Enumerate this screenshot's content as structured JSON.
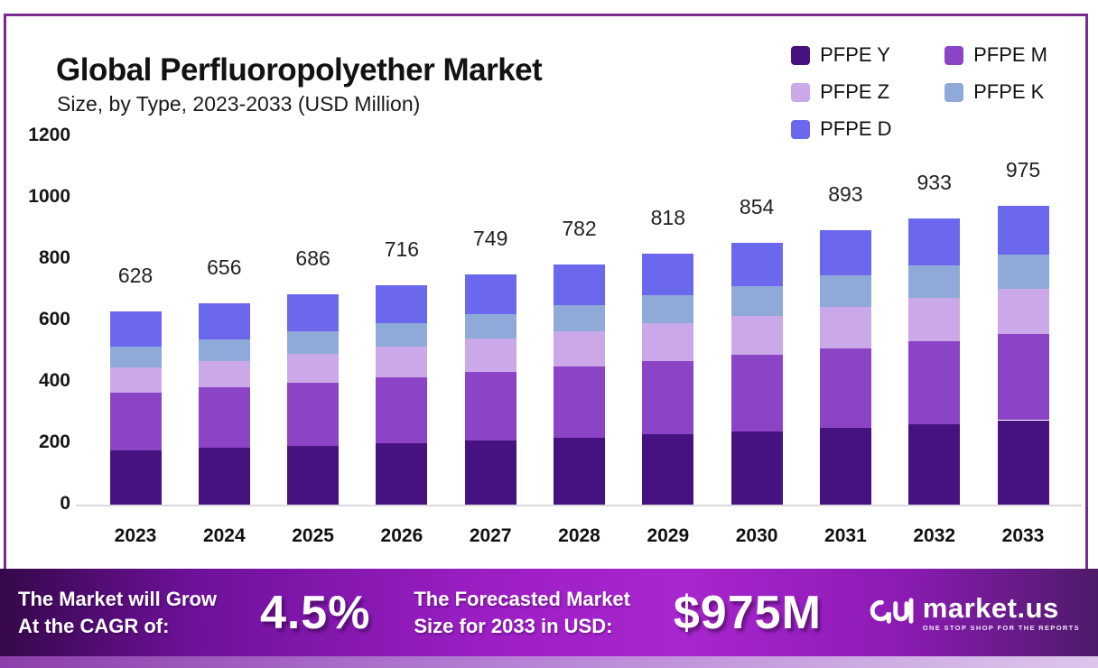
{
  "header": {
    "title": "Global Perfluoropolyether Market",
    "subtitle": "Size, by Type, 2023-2033 (USD Million)"
  },
  "legend": {
    "items": [
      {
        "label": "PFPE Y",
        "color": "#45127F"
      },
      {
        "label": "PFPE M",
        "color": "#8C44C6"
      },
      {
        "label": "PFPE Z",
        "color": "#CBA9E9"
      },
      {
        "label": "PFPE K",
        "color": "#8FA9D9"
      },
      {
        "label": "PFPE D",
        "color": "#6C68EE"
      }
    ]
  },
  "chart_data": {
    "type": "bar",
    "stacked": true,
    "title": "Global Perfluoropolyether Market Size, by Type, 2023-2033 (USD Million)",
    "xlabel": "",
    "ylabel": "",
    "ylim": [
      0,
      1200
    ],
    "y_ticks": [
      0,
      200,
      400,
      600,
      800,
      1000,
      1200
    ],
    "grid": false,
    "legend_position": "top-right",
    "categories": [
      "2023",
      "2024",
      "2025",
      "2026",
      "2027",
      "2028",
      "2029",
      "2030",
      "2031",
      "2032",
      "2033"
    ],
    "series": [
      {
        "name": "PFPE Y",
        "color": "#45127F",
        "values": [
          176,
          184,
          192,
          201,
          210,
          219,
          229,
          239,
          251,
          263,
          275
        ]
      },
      {
        "name": "PFPE M",
        "color": "#8C44C6",
        "values": [
          189,
          197,
          205,
          213,
          222,
          230,
          239,
          248,
          259,
          270,
          282
        ]
      },
      {
        "name": "PFPE Z",
        "color": "#CBA9E9",
        "values": [
          82,
          88,
          95,
          101,
          108,
          115,
          122,
          129,
          135,
          140,
          146
        ]
      },
      {
        "name": "PFPE K",
        "color": "#8FA9D9",
        "values": [
          67,
          70,
          74,
          77,
          81,
          86,
          91,
          96,
          101,
          106,
          111
        ]
      },
      {
        "name": "PFPE D",
        "color": "#6C68EE",
        "values": [
          114,
          117,
          120,
          124,
          128,
          132,
          137,
          142,
          147,
          154,
          161
        ]
      }
    ],
    "totals": [
      628,
      656,
      686,
      716,
      749,
      782,
      818,
      854,
      893,
      933,
      975
    ]
  },
  "banner": {
    "cagr_label_line1": "The Market will Grow",
    "cagr_label_line2": "At the CAGR of:",
    "cagr_value": "4.5%",
    "forecast_label_line1": "The Forecasted Market",
    "forecast_label_line2": "Size for 2033 in USD:",
    "forecast_value": "$975M",
    "brand_name": "market.us",
    "brand_tagline": "ONE STOP SHOP FOR THE REPORTS"
  },
  "colors": {
    "panel_border": "#7A2B8F",
    "axis_line": "#DCD8E0",
    "banner_gradient": [
      "#35084A",
      "#9C1FC4",
      "#A826CE",
      "#4E1B69"
    ],
    "bottom_strip_gradient": [
      "#8C3FAC",
      "#DCC6EC"
    ]
  }
}
